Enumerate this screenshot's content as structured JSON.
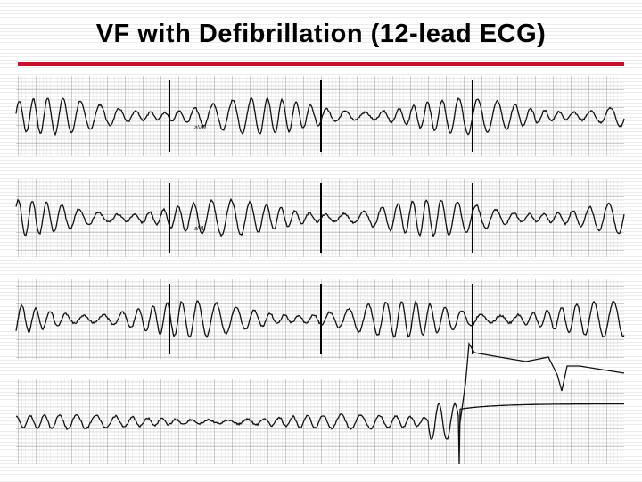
{
  "header": {
    "title": "VF with Defibrillation (12-lead ECG)"
  },
  "ecg": {
    "lead_labels": [
      "aVR",
      "aVL"
    ]
  }
}
